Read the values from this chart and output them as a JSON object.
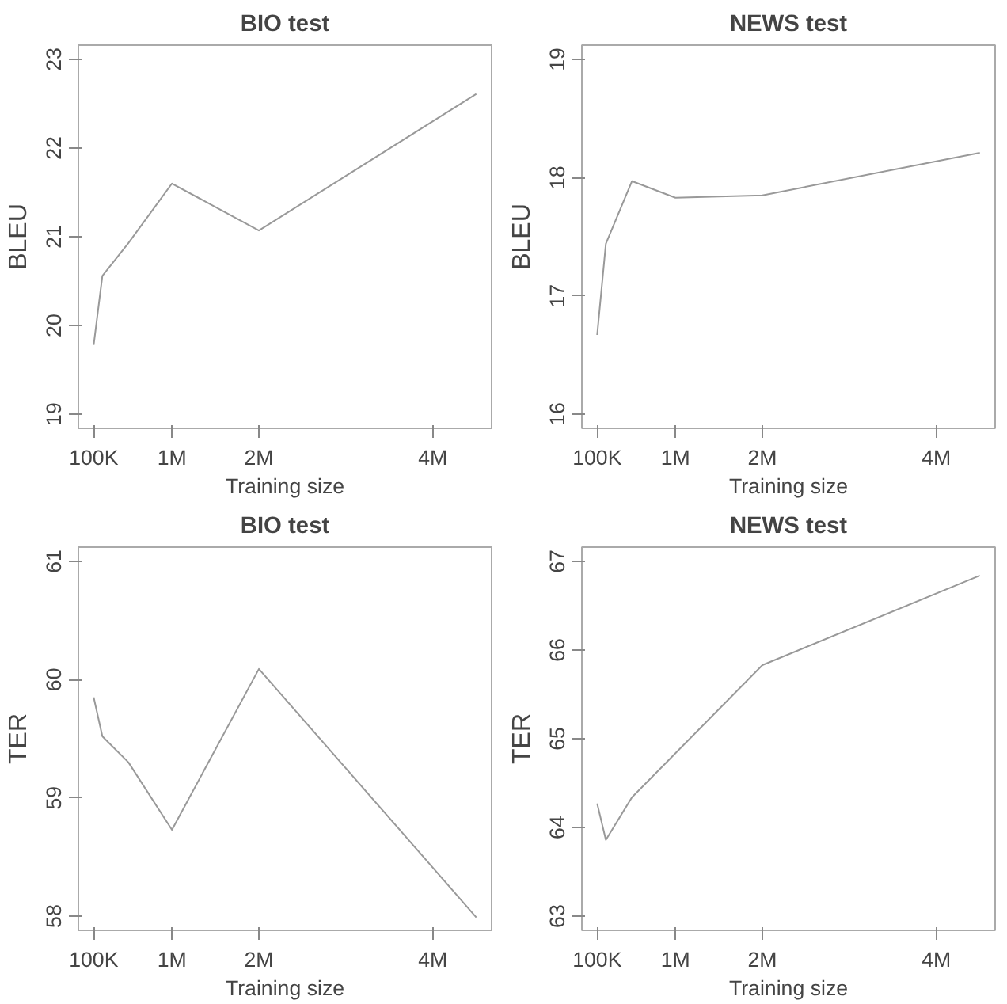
{
  "chart_data": [
    {
      "type": "line",
      "title": "BIO test",
      "xlabel": "Training size",
      "ylabel": "BLEU",
      "x": [
        100000,
        200000,
        500000,
        1000000,
        2000000,
        4500000
      ],
      "series": [
        {
          "color": "#999999",
          "values": [
            19.78,
            20.56,
            20.93,
            21.6,
            21.07,
            22.61
          ]
        }
      ],
      "xlim": [
        -76000,
        4676000
      ],
      "ylim": [
        18.84,
        23.16
      ],
      "xticks": [
        {
          "value": 100000,
          "label": "100K"
        },
        {
          "value": 1000000,
          "label": "1M"
        },
        {
          "value": 2000000,
          "label": "2M"
        },
        {
          "value": 4000000,
          "label": "4M"
        }
      ],
      "yticks": [
        19,
        20,
        21,
        22,
        23
      ],
      "grid": false,
      "marker": "none",
      "line_style": "solid"
    },
    {
      "type": "line",
      "title": "NEWS test",
      "xlabel": "Training size",
      "ylabel": "BLEU",
      "x": [
        100000,
        200000,
        500000,
        1000000,
        2000000,
        4500000
      ],
      "series": [
        {
          "color": "#999999",
          "values": [
            16.67,
            17.44,
            17.97,
            17.83,
            17.85,
            18.21
          ]
        }
      ],
      "xlim": [
        -76000,
        4676000
      ],
      "ylim": [
        15.88,
        19.12
      ],
      "xticks": [
        {
          "value": 100000,
          "label": "100K"
        },
        {
          "value": 1000000,
          "label": "1M"
        },
        {
          "value": 2000000,
          "label": "2M"
        },
        {
          "value": 4000000,
          "label": "4M"
        }
      ],
      "yticks": [
        16,
        17,
        18,
        19
      ],
      "grid": false,
      "marker": "none",
      "line_style": "solid"
    },
    {
      "type": "line",
      "title": "BIO test",
      "xlabel": "Training size",
      "ylabel": "TER",
      "x": [
        100000,
        200000,
        500000,
        1000000,
        2000000,
        4500000
      ],
      "series": [
        {
          "color": "#999999",
          "values": [
            59.85,
            59.52,
            59.3,
            58.73,
            60.09,
            57.99
          ]
        }
      ],
      "xlim": [
        -76000,
        4676000
      ],
      "ylim": [
        57.88,
        61.12
      ],
      "xticks": [
        {
          "value": 100000,
          "label": "100K"
        },
        {
          "value": 1000000,
          "label": "1M"
        },
        {
          "value": 2000000,
          "label": "2M"
        },
        {
          "value": 4000000,
          "label": "4M"
        }
      ],
      "yticks": [
        58,
        59,
        60,
        61
      ],
      "grid": false,
      "marker": "none",
      "line_style": "solid"
    },
    {
      "type": "line",
      "title": "NEWS test",
      "xlabel": "Training size",
      "ylabel": "TER",
      "x": [
        100000,
        200000,
        500000,
        2000000,
        4500000
      ],
      "series": [
        {
          "color": "#999999",
          "values": [
            64.27,
            63.86,
            64.34,
            65.83,
            66.84
          ]
        }
      ],
      "xlim": [
        -76000,
        4676000
      ],
      "ylim": [
        62.84,
        67.16
      ],
      "xticks": [
        {
          "value": 100000,
          "label": "100K"
        },
        {
          "value": 1000000,
          "label": "1M"
        },
        {
          "value": 2000000,
          "label": "2M"
        },
        {
          "value": 4000000,
          "label": "4M"
        }
      ],
      "yticks": [
        63,
        64,
        65,
        66,
        67
      ],
      "grid": false,
      "marker": "none",
      "line_style": "solid"
    }
  ]
}
